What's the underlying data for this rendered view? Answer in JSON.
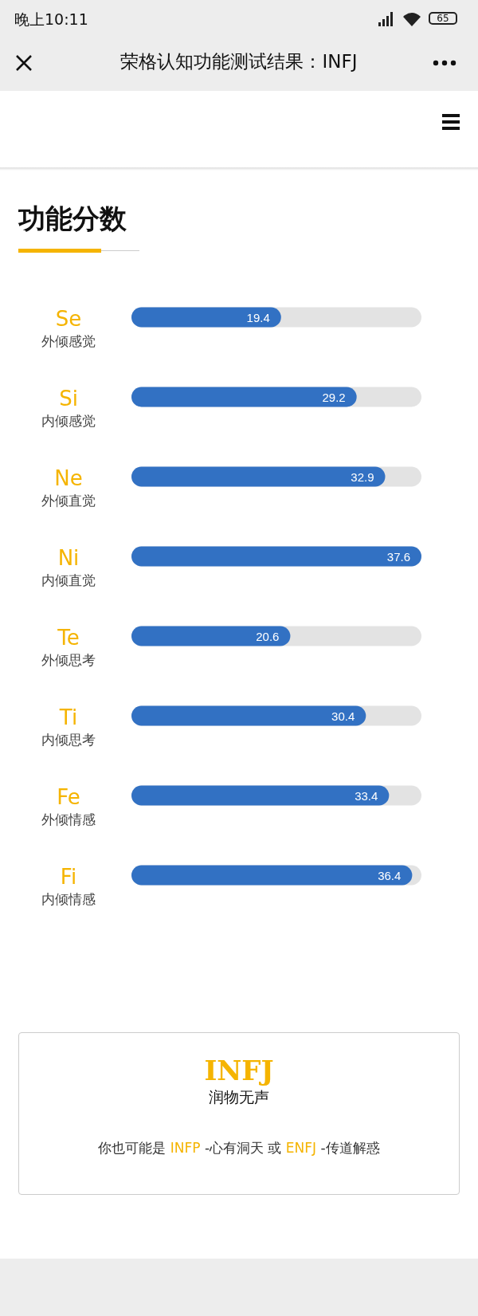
{
  "chart_data": {
    "type": "bar",
    "orientation": "horizontal",
    "title": "功能分数",
    "categories": [
      "Se\n外倾感觉",
      "Si\n内倾感觉",
      "Ne\n外倾直觉",
      "Ni\n内倾直觉",
      "Te\n外倾思考",
      "Ti\n内倾思考",
      "Fe\n外倾情感",
      "Fi\n内倾情感"
    ],
    "values": [
      19.4,
      29.2,
      32.9,
      37.6,
      20.6,
      30.4,
      33.4,
      36.4
    ],
    "color": "#3271c3",
    "xlim": [
      0,
      37.6
    ],
    "data_labels": true,
    "tick_labels": "y",
    "annotations": [
      "晚上10:11",
      "65",
      "荣格认知功能测试结果：INFJ",
      "INFJ",
      "润物无声",
      "你也可能是 ",
      "INFP",
      " -心有洞天 或 ",
      "ENFJ",
      " -传道解惑"
    ]
  }
}
